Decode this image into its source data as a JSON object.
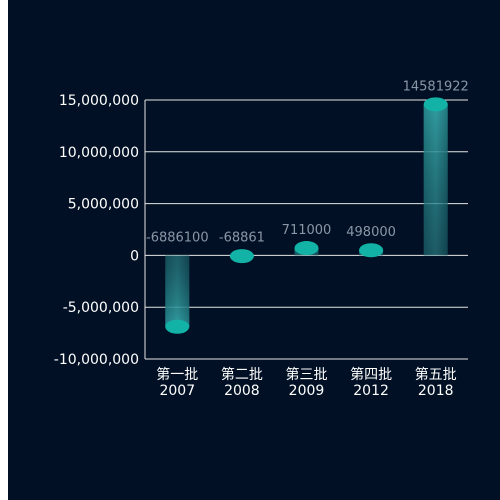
{
  "chart_data": {
    "type": "bar",
    "categories": [
      [
        "第一批",
        "2007"
      ],
      [
        "第二批",
        "2008"
      ],
      [
        "第三批",
        "2009"
      ],
      [
        "第四批",
        "2012"
      ],
      [
        "第五批",
        "2018"
      ]
    ],
    "values": [
      -6886100,
      -68861,
      711000,
      498000,
      14581922
    ],
    "value_labels": [
      "-6886100",
      "-68861",
      "711000",
      "498000",
      "14581922"
    ],
    "yticks": [
      {
        "value": 15000000,
        "label": "15,000,000"
      },
      {
        "value": 10000000,
        "label": "10,000,000"
      },
      {
        "value": 5000000,
        "label": "5,000,000"
      },
      {
        "value": 0,
        "label": "0"
      },
      {
        "value": -5000000,
        "label": "-5,000,000"
      },
      {
        "value": -10000000,
        "label": "-10,000,000"
      }
    ],
    "ylim": [
      -10000000,
      15000000
    ],
    "grid": true,
    "style": "cylinder",
    "colors": {
      "background": "#011024",
      "bar_top": "#0fa3a0",
      "bar_body": "#2a8b8f",
      "cap": "#12b3a6",
      "gridline": "#e6e6e6",
      "text": "#ffffff",
      "data_label": "#8a96a6"
    }
  }
}
